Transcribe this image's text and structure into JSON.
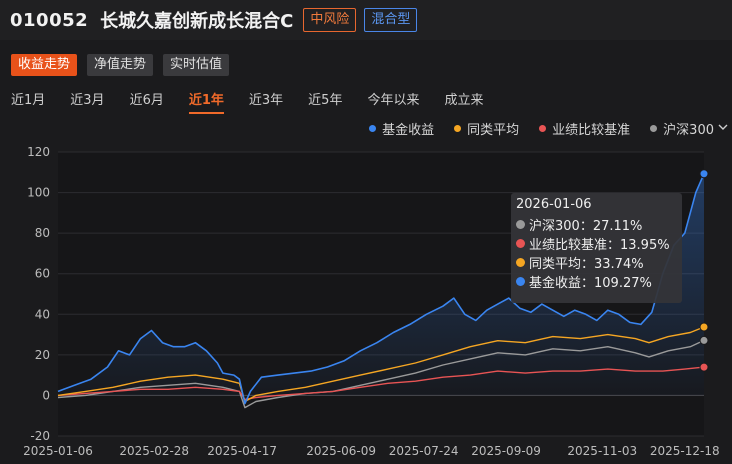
{
  "header": {
    "code": "010052",
    "name": "长城久嘉创新成长混合C",
    "risk_badge": "中风险",
    "type_badge": "混合型"
  },
  "subtabs": [
    {
      "label": "收益走势",
      "active": true
    },
    {
      "label": "净值走势",
      "active": false
    },
    {
      "label": "实时估值",
      "active": false
    }
  ],
  "ranges": [
    {
      "label": "近1月",
      "active": false
    },
    {
      "label": "近3月",
      "active": false
    },
    {
      "label": "近6月",
      "active": false
    },
    {
      "label": "近1年",
      "active": true
    },
    {
      "label": "近3年",
      "active": false
    },
    {
      "label": "近5年",
      "active": false
    },
    {
      "label": "今年以来",
      "active": false
    },
    {
      "label": "成立来",
      "active": false
    }
  ],
  "legend": {
    "fund": "基金收益",
    "peer": "同类平均",
    "benchmark": "业绩比较基准",
    "index": "沪深300",
    "index_dropdown": "chevron-down-icon"
  },
  "colors": {
    "fund": "#3a85f0",
    "peer": "#f5a623",
    "benchmark": "#e85454",
    "index": "#9a9a9a",
    "accent": "#e8521a"
  },
  "tooltip": {
    "date": "2026-01-06",
    "rows": [
      {
        "key": "index",
        "text": "沪深300：27.11%"
      },
      {
        "key": "benchmark",
        "text": "业绩比较基准：13.95%"
      },
      {
        "key": "peer",
        "text": "同类平均：33.74%"
      },
      {
        "key": "fund",
        "text": "基金收益：109.27%"
      }
    ]
  },
  "chart_data": {
    "type": "line",
    "ylim": [
      -20,
      120
    ],
    "yticks": [
      -20,
      0,
      20,
      40,
      60,
      80,
      100,
      120
    ],
    "xticks": [
      "2025-01-06",
      "2025-02-28",
      "2025-04-17",
      "2025-06-09",
      "2025-07-24",
      "2025-09-09",
      "2025-11-03",
      "2025-12-18"
    ],
    "x_index_range": [
      0,
      235
    ],
    "xtick_index": [
      0,
      35,
      67,
      103,
      133,
      163,
      198,
      228
    ],
    "series": [
      {
        "name": "基金收益",
        "key": "fund",
        "points": [
          [
            0,
            2
          ],
          [
            6,
            5
          ],
          [
            12,
            8
          ],
          [
            18,
            14
          ],
          [
            22,
            22
          ],
          [
            26,
            20
          ],
          [
            30,
            28
          ],
          [
            34,
            32
          ],
          [
            38,
            26
          ],
          [
            42,
            24
          ],
          [
            46,
            24
          ],
          [
            50,
            26
          ],
          [
            54,
            22
          ],
          [
            58,
            16
          ],
          [
            60,
            11
          ],
          [
            64,
            10
          ],
          [
            66,
            8
          ],
          [
            68,
            -4
          ],
          [
            70,
            2
          ],
          [
            74,
            9
          ],
          [
            80,
            10
          ],
          [
            86,
            11
          ],
          [
            92,
            12
          ],
          [
            98,
            14
          ],
          [
            104,
            17
          ],
          [
            110,
            22
          ],
          [
            116,
            26
          ],
          [
            122,
            31
          ],
          [
            128,
            35
          ],
          [
            134,
            40
          ],
          [
            140,
            44
          ],
          [
            144,
            48
          ],
          [
            148,
            40
          ],
          [
            152,
            37
          ],
          [
            156,
            42
          ],
          [
            160,
            45
          ],
          [
            164,
            48
          ],
          [
            168,
            43
          ],
          [
            172,
            41
          ],
          [
            176,
            45
          ],
          [
            180,
            42
          ],
          [
            184,
            39
          ],
          [
            188,
            42
          ],
          [
            192,
            40
          ],
          [
            196,
            37
          ],
          [
            200,
            42
          ],
          [
            204,
            40
          ],
          [
            208,
            36
          ],
          [
            212,
            35
          ],
          [
            216,
            41
          ],
          [
            220,
            60
          ],
          [
            224,
            74
          ],
          [
            228,
            80
          ],
          [
            232,
            100
          ],
          [
            235,
            109.27
          ]
        ]
      },
      {
        "name": "同类平均",
        "key": "peer",
        "points": [
          [
            0,
            0
          ],
          [
            10,
            2
          ],
          [
            20,
            4
          ],
          [
            30,
            7
          ],
          [
            40,
            9
          ],
          [
            50,
            10
          ],
          [
            60,
            8
          ],
          [
            66,
            6
          ],
          [
            68,
            -3
          ],
          [
            72,
            0
          ],
          [
            80,
            2
          ],
          [
            90,
            4
          ],
          [
            100,
            7
          ],
          [
            110,
            10
          ],
          [
            120,
            13
          ],
          [
            130,
            16
          ],
          [
            140,
            20
          ],
          [
            150,
            24
          ],
          [
            160,
            27
          ],
          [
            170,
            26
          ],
          [
            180,
            29
          ],
          [
            190,
            28
          ],
          [
            200,
            30
          ],
          [
            210,
            28
          ],
          [
            215,
            26
          ],
          [
            222,
            29
          ],
          [
            230,
            31
          ],
          [
            235,
            33.74
          ]
        ]
      },
      {
        "name": "业绩比较基准",
        "key": "benchmark",
        "points": [
          [
            0,
            0
          ],
          [
            10,
            1
          ],
          [
            20,
            2
          ],
          [
            30,
            3
          ],
          [
            40,
            3
          ],
          [
            50,
            4
          ],
          [
            60,
            3
          ],
          [
            66,
            2
          ],
          [
            68,
            -2
          ],
          [
            72,
            -1
          ],
          [
            80,
            0
          ],
          [
            90,
            1
          ],
          [
            100,
            2
          ],
          [
            110,
            4
          ],
          [
            120,
            6
          ],
          [
            130,
            7
          ],
          [
            140,
            9
          ],
          [
            150,
            10
          ],
          [
            160,
            12
          ],
          [
            170,
            11
          ],
          [
            180,
            12
          ],
          [
            190,
            12
          ],
          [
            200,
            13
          ],
          [
            210,
            12
          ],
          [
            220,
            12
          ],
          [
            228,
            13
          ],
          [
            235,
            13.95
          ]
        ]
      },
      {
        "name": "沪深300",
        "key": "index",
        "points": [
          [
            0,
            -1
          ],
          [
            10,
            0
          ],
          [
            20,
            2
          ],
          [
            30,
            4
          ],
          [
            40,
            5
          ],
          [
            50,
            6
          ],
          [
            60,
            4
          ],
          [
            66,
            2
          ],
          [
            68,
            -6
          ],
          [
            72,
            -3
          ],
          [
            80,
            -1
          ],
          [
            90,
            1
          ],
          [
            100,
            2
          ],
          [
            110,
            5
          ],
          [
            120,
            8
          ],
          [
            130,
            11
          ],
          [
            140,
            15
          ],
          [
            150,
            18
          ],
          [
            160,
            21
          ],
          [
            170,
            20
          ],
          [
            180,
            23
          ],
          [
            190,
            22
          ],
          [
            200,
            24
          ],
          [
            210,
            21
          ],
          [
            215,
            19
          ],
          [
            222,
            22
          ],
          [
            230,
            24
          ],
          [
            235,
            27.11
          ]
        ]
      }
    ]
  }
}
